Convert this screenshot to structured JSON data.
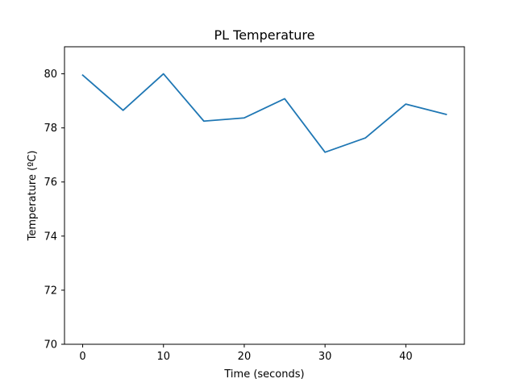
{
  "chart_data": {
    "type": "line",
    "title": "PL Temperature",
    "xlabel": "Time (seconds)",
    "ylabel": "Temperature (ºC)",
    "xlim": [
      -2.25,
      47.25
    ],
    "ylim": [
      70,
      81
    ],
    "x_ticks": [
      0,
      10,
      20,
      30,
      40
    ],
    "y_ticks": [
      70,
      72,
      74,
      76,
      78,
      80
    ],
    "grid": false,
    "series": [
      {
        "color": "#1f77b4",
        "x": [
          0,
          5,
          10,
          15,
          20,
          25,
          30,
          35,
          40,
          45
        ],
        "y": [
          79.95,
          78.65,
          80.0,
          78.25,
          78.37,
          79.08,
          77.1,
          77.63,
          78.88,
          78.5
        ]
      }
    ]
  }
}
